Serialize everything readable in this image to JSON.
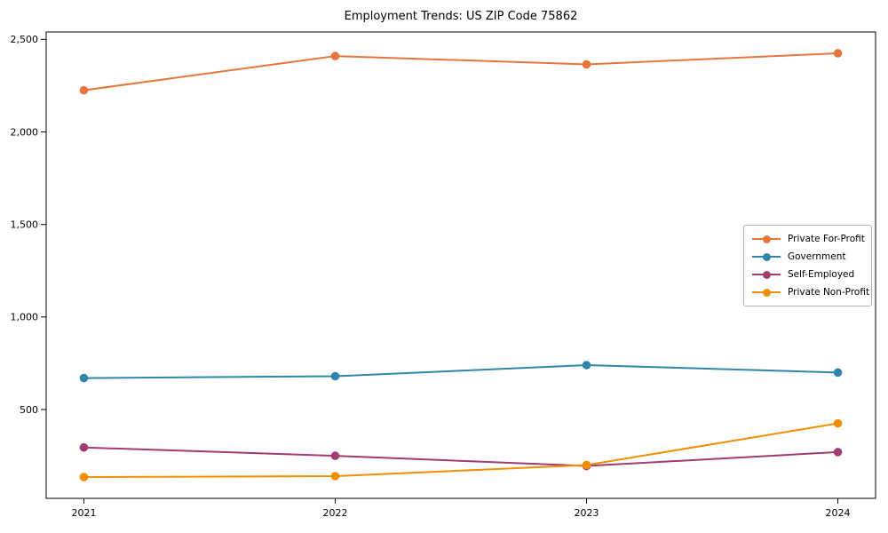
{
  "chart_data": {
    "type": "line",
    "title": "Employment Trends: US ZIP Code 75862",
    "x": [
      2021,
      2022,
      2023,
      2024
    ],
    "xtick_labels": [
      "2021",
      "2022",
      "2023",
      "2024"
    ],
    "ytick_values": [
      500,
      1000,
      1500,
      2000,
      2500
    ],
    "ytick_labels": [
      "500",
      "1,000",
      "1,500",
      "2,000",
      "2,500"
    ],
    "xlim": [
      2020.85,
      2024.15
    ],
    "ylim": [
      20,
      2540
    ],
    "grid": false,
    "legend_position": "center-right",
    "series": [
      {
        "name": "Private For-Profit",
        "color": "#E8763C",
        "values": [
          2225,
          2410,
          2365,
          2425
        ]
      },
      {
        "name": "Government",
        "color": "#2E86AB",
        "values": [
          670,
          680,
          740,
          700
        ]
      },
      {
        "name": "Self-Employed",
        "color": "#A23B72",
        "values": [
          295,
          250,
          195,
          270
        ]
      },
      {
        "name": "Private Non-Profit",
        "color": "#F18F01",
        "values": [
          135,
          140,
          200,
          425
        ]
      }
    ]
  }
}
